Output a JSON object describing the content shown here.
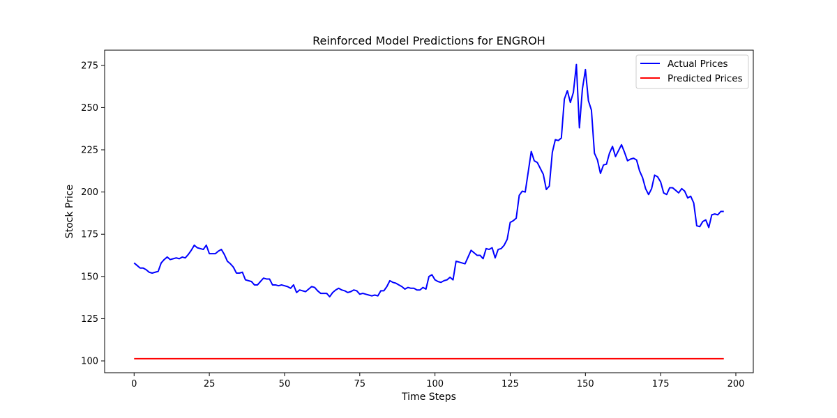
{
  "chart_data": {
    "type": "line",
    "title": "Reinforced Model Predictions for ENGROH",
    "xlabel": "Time Steps",
    "ylabel": "Stock Price",
    "xlim": [
      -9.8,
      205.8
    ],
    "ylim": [
      93,
      284
    ],
    "xticks": [
      0,
      25,
      50,
      75,
      100,
      125,
      150,
      175,
      200
    ],
    "yticks": [
      100,
      125,
      150,
      175,
      200,
      225,
      250,
      275
    ],
    "grid": false,
    "legend_position": "top-right",
    "series": [
      {
        "name": "Actual Prices",
        "color": "#0000ff",
        "x": [
          0,
          1,
          2,
          3,
          4,
          5,
          6,
          7,
          8,
          9,
          10,
          11,
          12,
          13,
          14,
          15,
          16,
          17,
          18,
          19,
          20,
          21,
          22,
          23,
          24,
          25,
          26,
          27,
          28,
          29,
          30,
          31,
          32,
          33,
          34,
          35,
          36,
          37,
          38,
          39,
          40,
          41,
          42,
          43,
          44,
          45,
          46,
          47,
          48,
          49,
          50,
          51,
          52,
          53,
          54,
          55,
          56,
          57,
          58,
          59,
          60,
          61,
          62,
          63,
          64,
          65,
          66,
          67,
          68,
          69,
          70,
          71,
          72,
          73,
          74,
          75,
          76,
          77,
          78,
          79,
          80,
          81,
          82,
          83,
          84,
          85,
          86,
          87,
          88,
          89,
          90,
          91,
          92,
          93,
          94,
          95,
          96,
          97,
          98,
          99,
          100,
          101,
          102,
          103,
          104,
          105,
          106,
          107,
          108,
          109,
          110,
          111,
          112,
          113,
          114,
          115,
          116,
          117,
          118,
          119,
          120,
          121,
          122,
          123,
          124,
          125,
          126,
          127,
          128,
          129,
          130,
          131,
          132,
          133,
          134,
          135,
          136,
          137,
          138,
          139,
          140,
          141,
          142,
          143,
          144,
          145,
          146,
          147,
          148,
          149,
          150,
          151,
          152,
          153,
          154,
          155,
          156,
          157,
          158,
          159,
          160,
          161,
          162,
          163,
          164,
          165,
          166,
          167,
          168,
          169,
          170,
          171,
          172,
          173,
          174,
          175,
          176,
          177,
          178,
          179,
          180,
          181,
          182,
          183,
          184,
          185,
          186,
          187,
          188,
          189,
          190,
          191,
          192,
          193,
          194,
          195,
          196
        ],
        "values": [
          158,
          156.5,
          155,
          155,
          154,
          152.5,
          152,
          152.5,
          153,
          158,
          160,
          161.5,
          160,
          160.5,
          161,
          160.5,
          161.5,
          161,
          163,
          165.5,
          168.5,
          167,
          166.5,
          166,
          168.5,
          163.5,
          163.5,
          163.5,
          165,
          166,
          163,
          159,
          157.5,
          155.5,
          152,
          152,
          152.5,
          148,
          147.5,
          147,
          145,
          145,
          147,
          149,
          148.5,
          148.5,
          145,
          145,
          144.5,
          145,
          144.5,
          144,
          143,
          145,
          140.5,
          142,
          141.5,
          141,
          142.5,
          144,
          143.5,
          141.5,
          140,
          140,
          140,
          138,
          140.5,
          142,
          143,
          142,
          141.5,
          140.5,
          141,
          142,
          141.5,
          139.5,
          140,
          139.5,
          139,
          138.5,
          139,
          138.5,
          141.5,
          141.5,
          144,
          147.5,
          146.5,
          146,
          145,
          144,
          142.5,
          143.5,
          143,
          143,
          142,
          142,
          143.5,
          142.5,
          150,
          151,
          148,
          147,
          146.5,
          147.5,
          148,
          149.5,
          148,
          159,
          158.5,
          158,
          157.5,
          161.5,
          165.5,
          164,
          162.5,
          162.5,
          160.5,
          166.5,
          166,
          167,
          161,
          166,
          166.5,
          168.5,
          172,
          182,
          183,
          184.5,
          198,
          200.5,
          200,
          212,
          224,
          218.5,
          217.5,
          214,
          210.5,
          201.5,
          203.5,
          223.5,
          231,
          230.5,
          232,
          255,
          260,
          253,
          259,
          275.5,
          238,
          261,
          272.5,
          254,
          248.5,
          223,
          219,
          211,
          216,
          216.5,
          223,
          227,
          221,
          224.5,
          228,
          223.5,
          218.5,
          219.5,
          220,
          219,
          212.5,
          208.5,
          202,
          198.5,
          202,
          210,
          209,
          206,
          199.5,
          198.5,
          202.5,
          202.5,
          201,
          199.5,
          202,
          200.5,
          196.5,
          197.5,
          193.5,
          180,
          179.5,
          182.5,
          183.5,
          179,
          186.5,
          187,
          186.5,
          188.5,
          188.5
        ]
      },
      {
        "name": "Predicted Prices",
        "color": "#ff0000",
        "x": [
          0,
          196
        ],
        "values": [
          101.3,
          101.3
        ]
      }
    ]
  }
}
